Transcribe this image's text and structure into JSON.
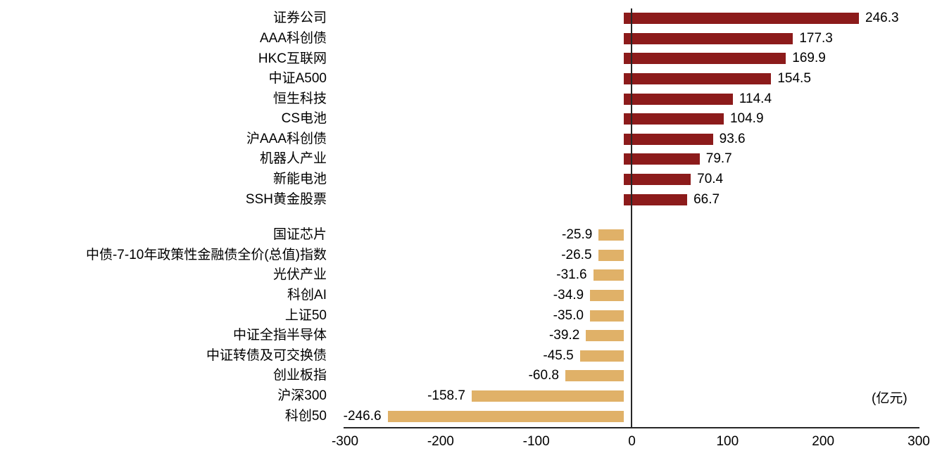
{
  "chart_data": {
    "type": "bar",
    "orientation": "horizontal",
    "title": "",
    "unit_label": "(亿元)",
    "xlabel": "",
    "ylabel": "",
    "xlim": [
      -300,
      300
    ],
    "x_ticks": [
      "-300",
      "-200",
      "-100",
      "0",
      "100",
      "200",
      "300"
    ],
    "x_tick_values": [
      -300,
      -200,
      -100,
      0,
      100,
      200,
      300
    ],
    "grid": false,
    "legend": "none",
    "bar_colors": {
      "positive": "#8C1B1B",
      "negative": "#E0B168"
    },
    "categories": [
      "证券公司",
      "AAA科创债",
      "HKC互联网",
      "中证A500",
      "恒生科技",
      "CS电池",
      "沪AAA科创债",
      "机器人产业",
      "新能电池",
      "SSH黄金股票",
      "国证芯片",
      "中债-7-10年政策性金融债全价(总值)指数",
      "光伏产业",
      "科创AI",
      "上证50",
      "中证全指半导体",
      "中证转债及可交换债",
      "创业板指",
      "沪深300",
      "科创50"
    ],
    "values": [
      246.3,
      177.3,
      169.9,
      154.5,
      114.4,
      104.9,
      93.6,
      79.7,
      70.4,
      66.7,
      -25.9,
      -26.5,
      -31.6,
      -34.9,
      -35.0,
      -39.2,
      -45.5,
      -60.8,
      -158.7,
      -246.6
    ],
    "value_labels": [
      "246.3",
      "177.3",
      "169.9",
      "154.5",
      "114.4",
      "104.9",
      "93.6",
      "79.7",
      "70.4",
      "66.7",
      "-25.9",
      "-26.5",
      "-31.6",
      "-34.9",
      "-35.0",
      "-39.2",
      "-45.5",
      "-60.8",
      "-158.7",
      "-246.6"
    ]
  }
}
